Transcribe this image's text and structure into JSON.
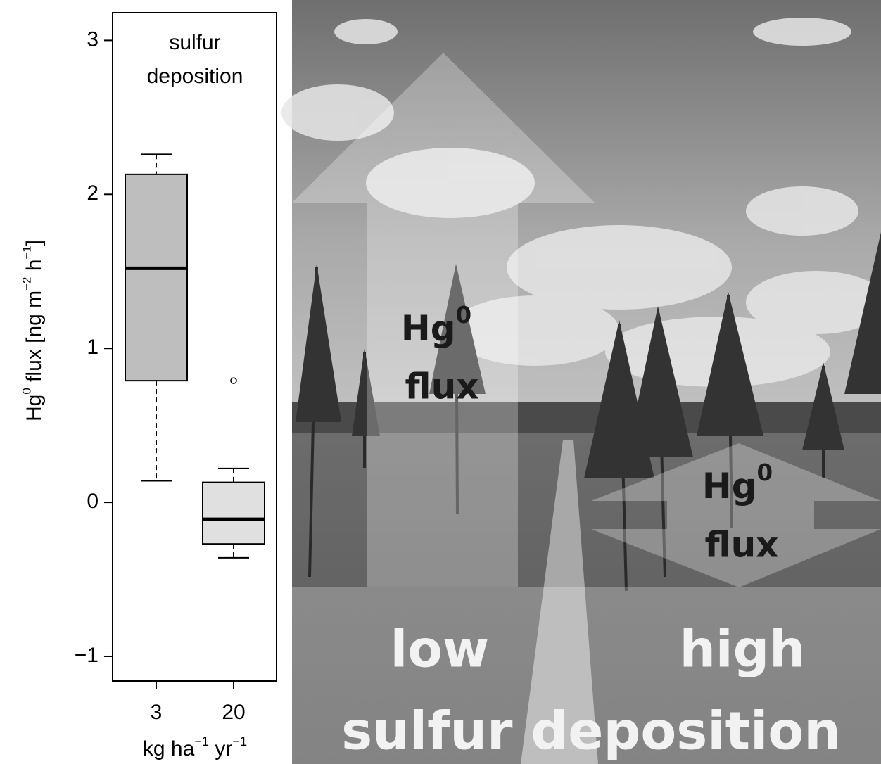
{
  "chart_data": {
    "type": "box",
    "title": [
      "sulfur",
      "deposition"
    ],
    "y_label": [
      {
        "text": "Hg"
      },
      {
        "sup": "0"
      },
      {
        "text": " flux [ng m"
      },
      {
        "sup": "−2"
      },
      {
        "text": " h"
      },
      {
        "sup": "−1"
      },
      {
        "text": "]"
      }
    ],
    "x_label": [
      {
        "text": "kg ha"
      },
      {
        "sup": "−1"
      },
      {
        "text": " yr"
      },
      {
        "sup": "−1"
      }
    ],
    "categories": [
      "3",
      "20"
    ],
    "boxes": [
      {
        "whislo": 0.14,
        "q1": 0.79,
        "med": 1.52,
        "q3": 2.13,
        "whishi": 2.26,
        "color": "#bebebe"
      },
      {
        "whislo": -0.36,
        "q1": -0.27,
        "med": -0.11,
        "q3": 0.13,
        "whishi": 0.22,
        "fliers": [
          0.79
        ],
        "color": "#e0e0e0"
      }
    ],
    "ylim": [
      -1.16,
      3.18
    ],
    "yticks": [
      {
        "value": -1,
        "label": "−1"
      },
      0,
      1,
      2,
      3
    ]
  },
  "photo_annotations": {
    "upward_arrow": {
      "label": [
        {
          "text": "Hg"
        },
        {
          "sup": "0"
        }
      ],
      "line2": "flux"
    },
    "double_arrow": {
      "label": [
        {
          "text": "Hg"
        },
        {
          "sup": "0"
        }
      ],
      "line2": "flux"
    },
    "low": "low",
    "high": "high",
    "bottom": "sulfur deposition"
  }
}
